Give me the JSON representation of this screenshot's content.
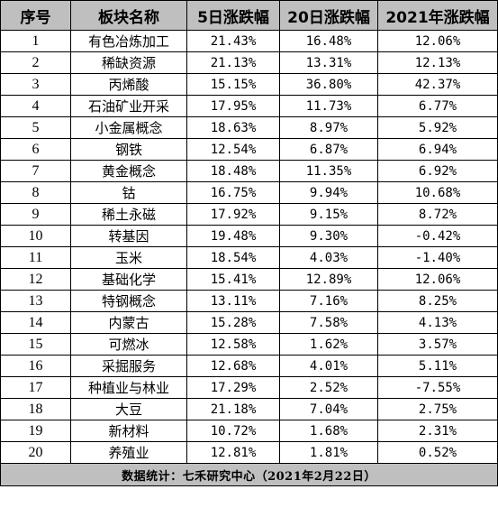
{
  "table": {
    "headers": [
      "序号",
      "板块名称",
      "5日涨跌幅",
      "20日涨跌幅",
      "2021年涨跌幅"
    ],
    "rows": [
      [
        "1",
        "有色冶炼加工",
        "21.43%",
        "16.48%",
        "12.06%"
      ],
      [
        "2",
        "稀缺资源",
        "21.13%",
        "13.31%",
        "12.13%"
      ],
      [
        "3",
        "丙烯酸",
        "15.15%",
        "36.80%",
        "42.37%"
      ],
      [
        "4",
        "石油矿业开采",
        "17.95%",
        "11.73%",
        "6.77%"
      ],
      [
        "5",
        "小金属概念",
        "18.63%",
        "8.97%",
        "5.92%"
      ],
      [
        "6",
        "钢铁",
        "12.54%",
        "6.87%",
        "6.94%"
      ],
      [
        "7",
        "黄金概念",
        "18.48%",
        "11.35%",
        "6.92%"
      ],
      [
        "8",
        "钴",
        "16.75%",
        "9.94%",
        "10.68%"
      ],
      [
        "9",
        "稀土永磁",
        "17.92%",
        "9.15%",
        "8.72%"
      ],
      [
        "10",
        "转基因",
        "19.48%",
        "9.30%",
        "-0.42%"
      ],
      [
        "11",
        "玉米",
        "18.54%",
        "4.03%",
        "-1.40%"
      ],
      [
        "12",
        "基础化学",
        "15.41%",
        "12.89%",
        "12.06%"
      ],
      [
        "13",
        "特钢概念",
        "13.11%",
        "7.16%",
        "8.25%"
      ],
      [
        "14",
        "内蒙古",
        "15.28%",
        "7.58%",
        "4.13%"
      ],
      [
        "15",
        "可燃冰",
        "12.58%",
        "1.62%",
        "3.57%"
      ],
      [
        "16",
        "采掘服务",
        "12.68%",
        "4.01%",
        "5.11%"
      ],
      [
        "17",
        "种植业与林业",
        "17.29%",
        "2.52%",
        "-7.55%"
      ],
      [
        "18",
        "大豆",
        "21.18%",
        "7.04%",
        "2.75%"
      ],
      [
        "19",
        "新材料",
        "10.72%",
        "1.68%",
        "2.31%"
      ],
      [
        "20",
        "养殖业",
        "12.81%",
        "1.81%",
        "0.52%"
      ]
    ],
    "footer": "数据统计：七禾研究中心（2021年2月22日）"
  },
  "colors": {
    "header_bg": "#bfbfbf",
    "footer_bg": "#bfbfbf",
    "border": "#000000",
    "text": "#000000"
  }
}
